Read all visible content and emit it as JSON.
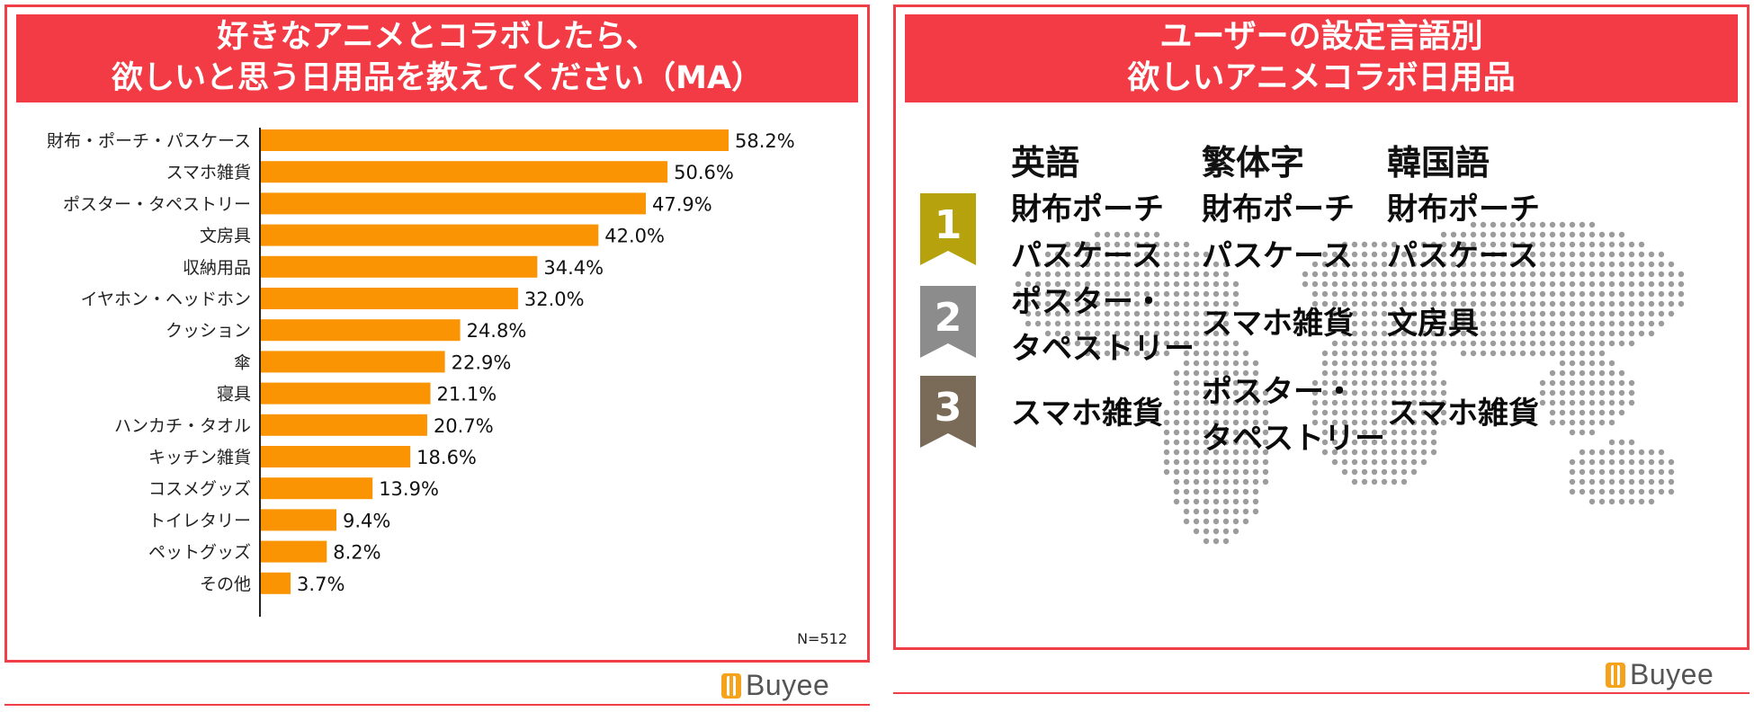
{
  "left": {
    "title_line1": "好きなアニメとコラボしたら、",
    "title_line2": "欲しいと思う日用品を教えてください（MA）",
    "note": "N=512"
  },
  "chart_data": {
    "type": "bar",
    "orientation": "horizontal",
    "title": "好きなアニメとコラボしたら、欲しいと思う日用品を教えてください（MA）",
    "categories": [
      "財布・ポーチ・パスケース",
      "スマホ雑貨",
      "ポスター・タペストリー",
      "文房具",
      "収納用品",
      "イヤホン・ヘッドホン",
      "クッション",
      "傘",
      "寝具",
      "ハンカチ・タオル",
      "キッチン雑貨",
      "コスメグッズ",
      "トイレタリー",
      "ペットグッズ",
      "その他"
    ],
    "values": [
      58.2,
      50.6,
      47.9,
      42.0,
      34.4,
      32.0,
      24.8,
      22.9,
      21.1,
      20.7,
      18.6,
      13.9,
      9.4,
      8.2,
      3.7
    ],
    "value_labels": [
      "58.2%",
      "50.6%",
      "47.9%",
      "42.0%",
      "34.4%",
      "32.0%",
      "24.8%",
      "22.9%",
      "21.1%",
      "20.7%",
      "18.6%",
      "13.9%",
      "9.4%",
      "8.2%",
      "3.7%"
    ],
    "unit": "%",
    "bar_color": "#fb9402",
    "grid": false,
    "legend": "none"
  },
  "right": {
    "title_line1": "ユーザーの設定言語別",
    "title_line2": "欲しいアニメコラボ日用品",
    "columns": [
      "英語",
      "繁体字",
      "韓国語"
    ],
    "ranks": [
      {
        "number": "1",
        "color": "#b5a20d",
        "cells": [
          [
            "財布ポーチ",
            "パスケース"
          ],
          [
            "財布ポーチ",
            "パスケース"
          ],
          [
            "財布ポーチ",
            "パスケース"
          ]
        ]
      },
      {
        "number": "2",
        "color": "#8c8c8c",
        "cells": [
          [
            "ポスター・",
            "タペストリー"
          ],
          [
            "スマホ雑貨"
          ],
          [
            "文房具"
          ]
        ]
      },
      {
        "number": "3",
        "color": "#7a6a58",
        "cells": [
          [
            "スマホ雑貨"
          ],
          [
            "ポスター・",
            "タペストリー"
          ],
          [
            "スマホ雑貨"
          ]
        ]
      }
    ]
  },
  "brand": {
    "logo_text": "Buyee",
    "logo_color": "#f7a21b"
  },
  "colors": {
    "accent": "#f23b45",
    "bar": "#fb9402"
  }
}
